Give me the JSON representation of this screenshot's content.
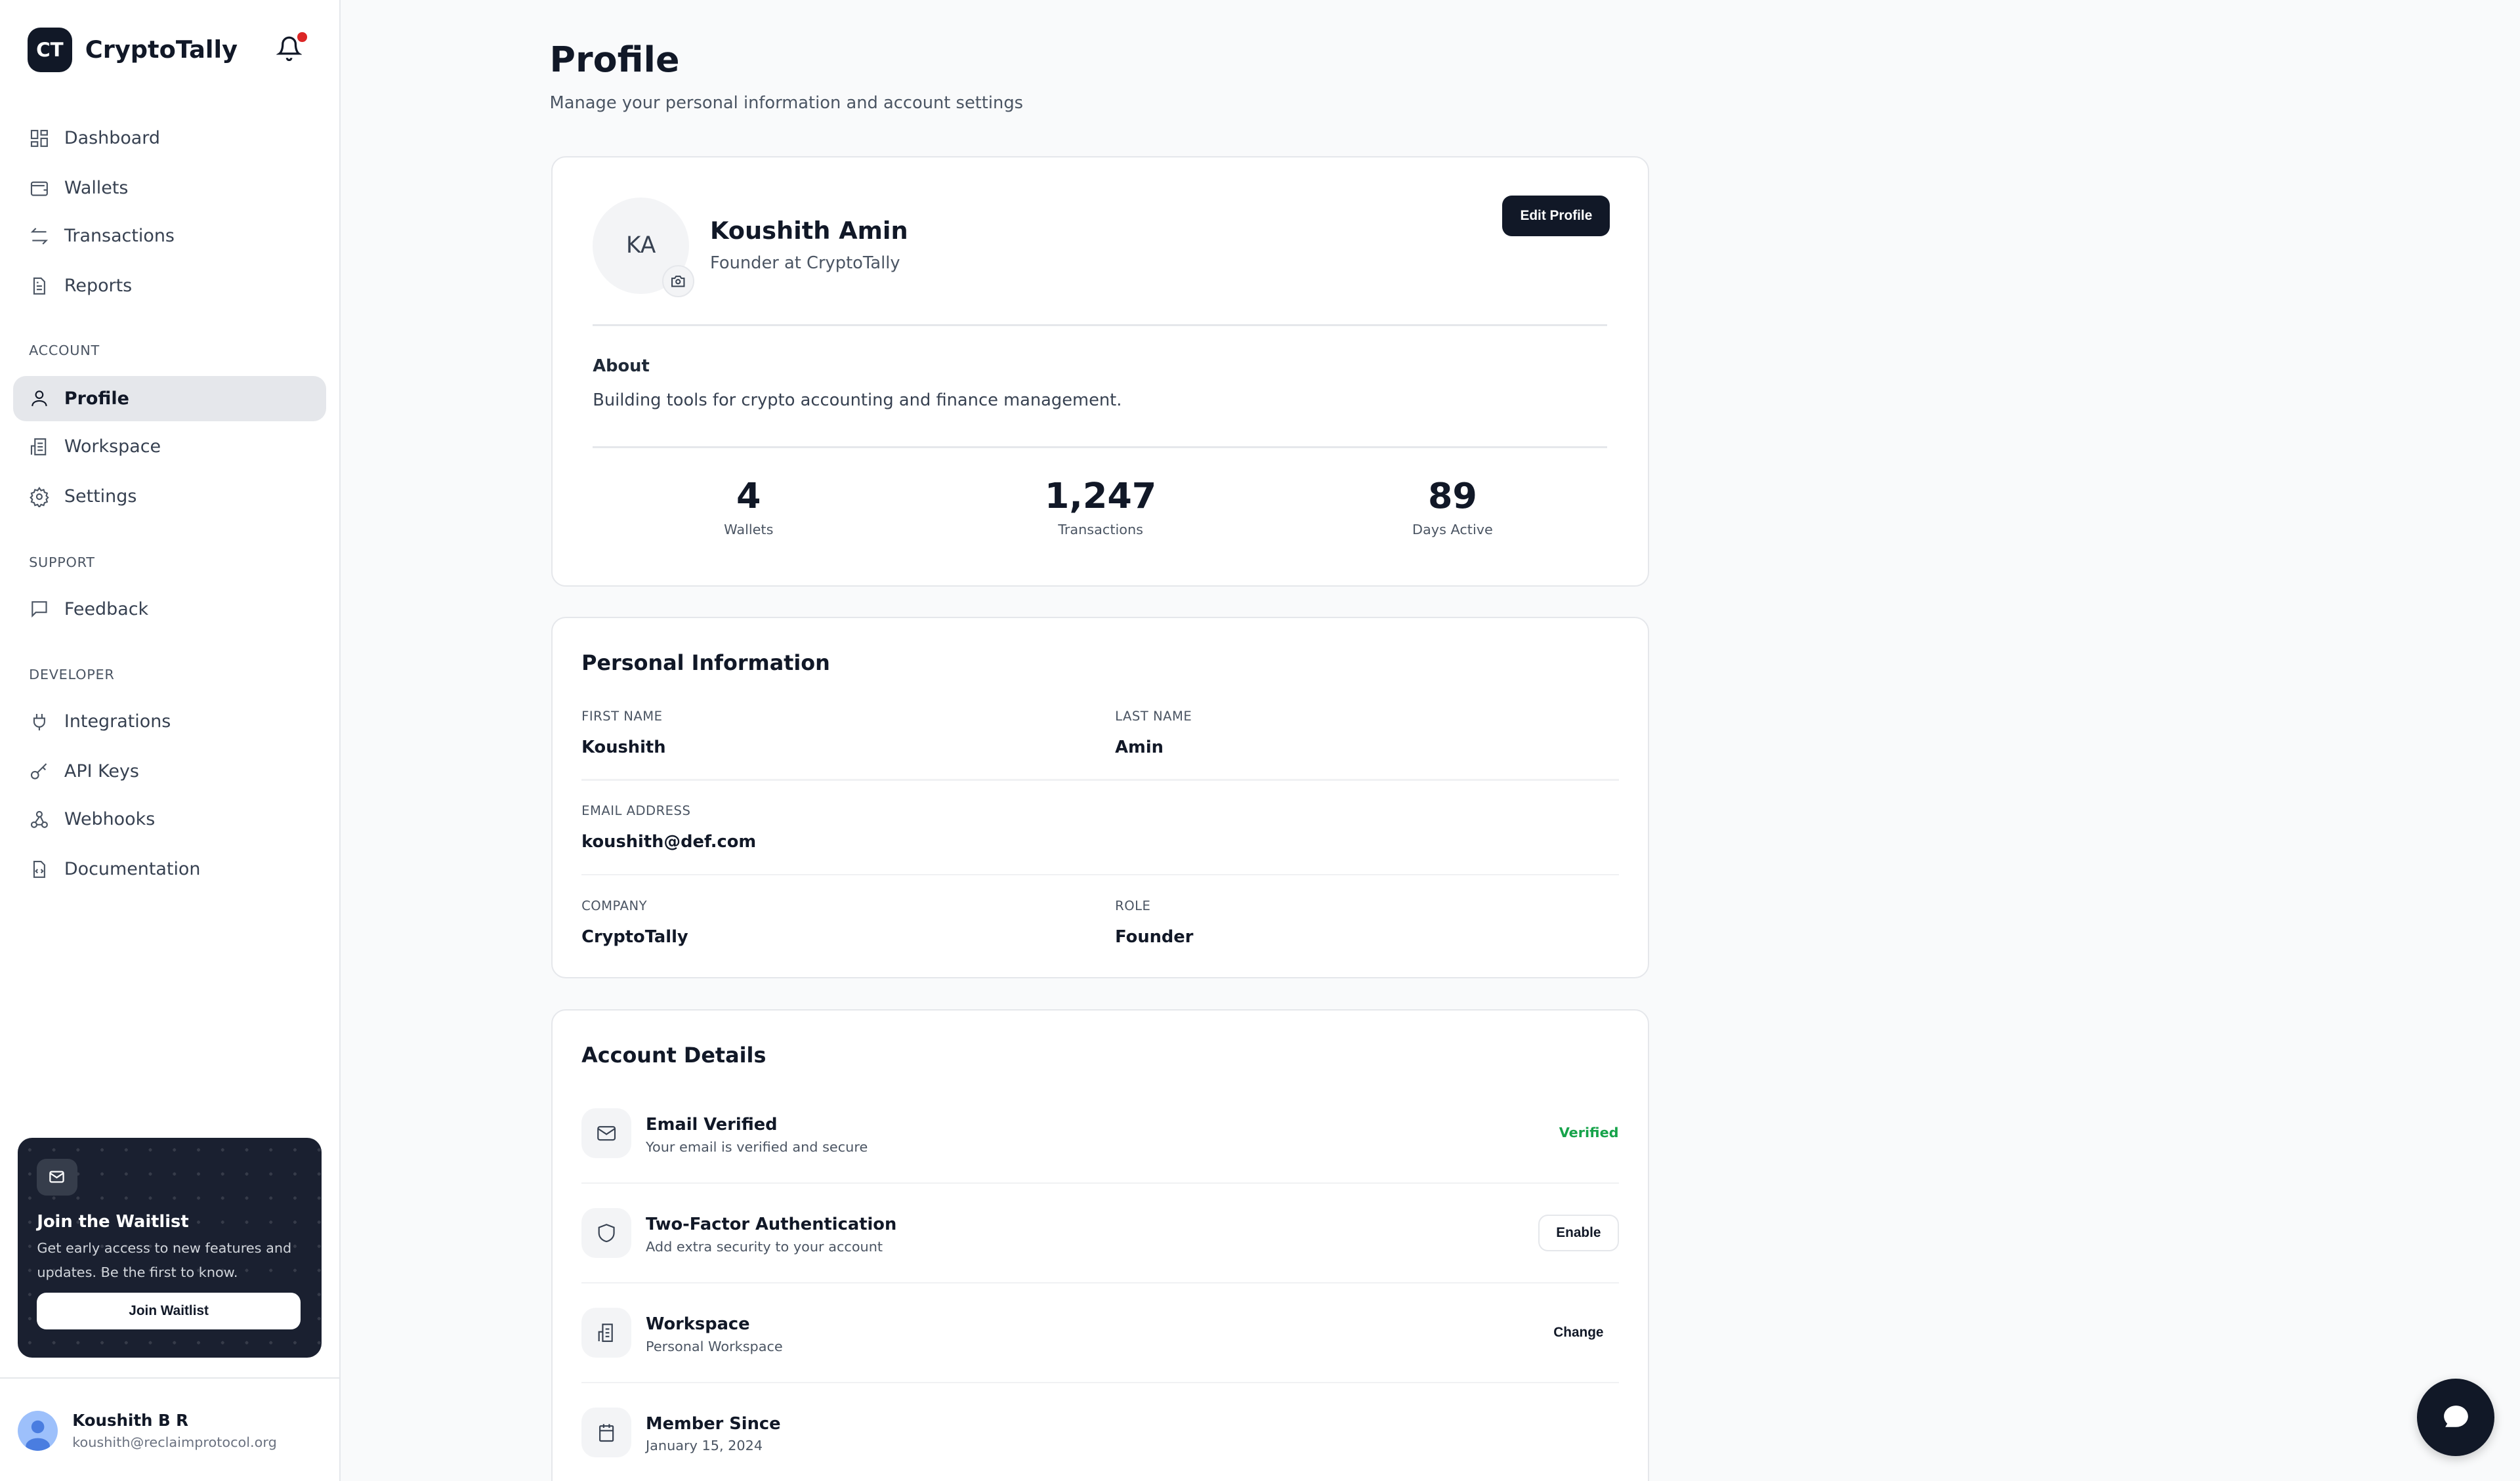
{
  "app": {
    "logo_text": "CT",
    "name": "CryptoTally",
    "notification_color": "#dc2626"
  },
  "sidebar": {
    "main": [
      {
        "label": "Dashboard",
        "icon": "dashboard-icon"
      },
      {
        "label": "Wallets",
        "icon": "wallet-icon"
      },
      {
        "label": "Transactions",
        "icon": "transfer-icon"
      },
      {
        "label": "Reports",
        "icon": "report-icon"
      }
    ],
    "account_label": "ACCOUNT",
    "account": [
      {
        "label": "Profile",
        "icon": "user-icon",
        "active": true
      },
      {
        "label": "Workspace",
        "icon": "building-icon"
      },
      {
        "label": "Settings",
        "icon": "gear-icon"
      }
    ],
    "support_label": "SUPPORT",
    "support": [
      {
        "label": "Feedback",
        "icon": "message-icon"
      }
    ],
    "developer_label": "DEVELOPER",
    "developer": [
      {
        "label": "Integrations",
        "icon": "plug-icon"
      },
      {
        "label": "API Keys",
        "icon": "key-icon"
      },
      {
        "label": "Webhooks",
        "icon": "webhook-icon"
      },
      {
        "label": "Documentation",
        "icon": "document-code-icon"
      }
    ],
    "waitlist": {
      "title": "Join the Waitlist",
      "text": "Get early access to new features and updates. Be the first to know.",
      "button": "Join Waitlist"
    },
    "user": {
      "name": "Koushith B R",
      "email": "koushith@reclaimprotocol.org"
    }
  },
  "page": {
    "title": "Profile",
    "subtitle": "Manage your personal information and account settings"
  },
  "profile": {
    "initials": "KA",
    "name": "Koushith Amin",
    "role": "Founder at CryptoTally",
    "edit_button": "Edit Profile",
    "about_title": "About",
    "about_text": "Building tools for crypto accounting and finance management.",
    "stats": [
      {
        "value": "4",
        "label": "Wallets"
      },
      {
        "value": "1,247",
        "label": "Transactions"
      },
      {
        "value": "89",
        "label": "Days Active"
      }
    ]
  },
  "personal": {
    "title": "Personal Information",
    "first_name_label": "FIRST NAME",
    "first_name": "Koushith",
    "last_name_label": "LAST NAME",
    "last_name": "Amin",
    "email_label": "EMAIL ADDRESS",
    "email": "koushith@def.com",
    "company_label": "COMPANY",
    "company": "CryptoTally",
    "role_label": "ROLE",
    "role": "Founder"
  },
  "account": {
    "title": "Account Details",
    "rows": [
      {
        "title": "Email Verified",
        "subtitle": "Your email is verified and secure",
        "action": "Verified",
        "icon": "mail-icon"
      },
      {
        "title": "Two-Factor Authentication",
        "subtitle": "Add extra security to your account",
        "action": "Enable",
        "icon": "shield-icon"
      },
      {
        "title": "Workspace",
        "subtitle": "Personal Workspace",
        "action": "Change",
        "icon": "building-icon"
      },
      {
        "title": "Member Since",
        "subtitle": "January 15, 2024",
        "icon": "calendar-icon"
      }
    ],
    "verified_color": "#16a34a"
  }
}
